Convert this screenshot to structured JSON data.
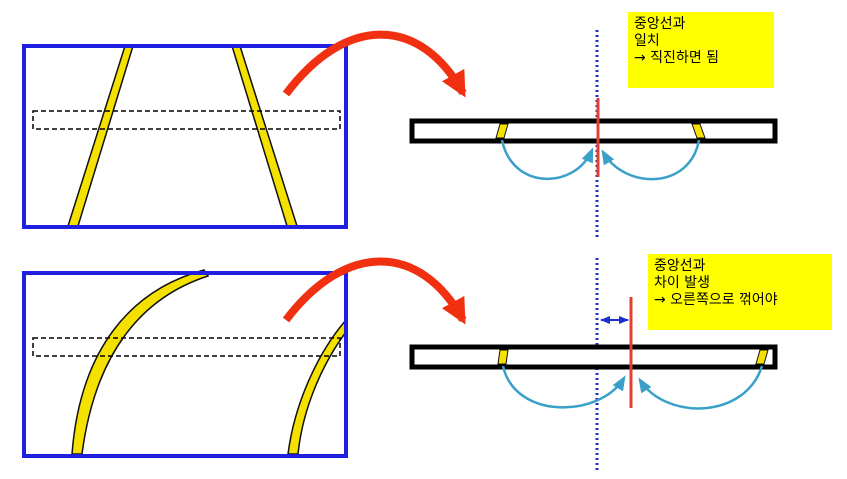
{
  "colors": {
    "frame": "#1f1fe0",
    "lane_line": "#f5e100",
    "lane_outline": "#111111",
    "arrow_big": "#f03010",
    "arrow_small": "#3aa0c8",
    "center_line": "#1c2fd0",
    "car_center": "#e04030",
    "note_bg": "#ffff00"
  },
  "scenarios": [
    {
      "id": "straight",
      "note_lines": [
        "중앙선과",
        "일치",
        "→ 직진하면 됨"
      ]
    },
    {
      "id": "curve",
      "note_lines": [
        "중앙선과",
        "차이 발생",
        "→ 오른쪽으로 꺾어야"
      ]
    }
  ]
}
